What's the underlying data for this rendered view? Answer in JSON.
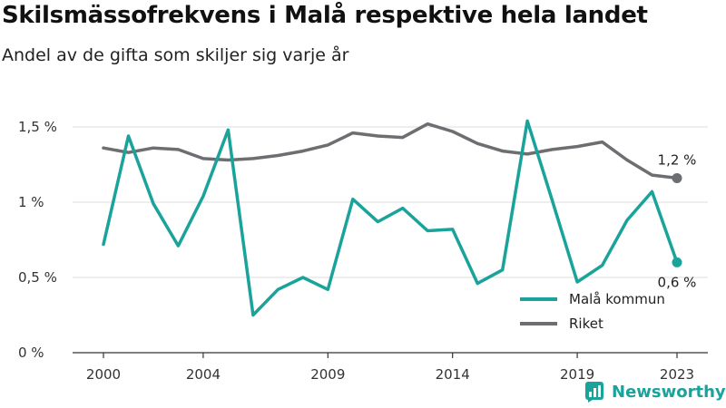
{
  "title": "Skilsmässofrekvens i Malå respektive hela landet",
  "subtitle": "Andel av de gifta som skiljer sig varje år",
  "brand": {
    "name": "Newsworthy",
    "color": "#1aa39a"
  },
  "chart_data": {
    "type": "line",
    "x": [
      2000,
      2001,
      2002,
      2003,
      2004,
      2005,
      2006,
      2007,
      2008,
      2009,
      2010,
      2011,
      2012,
      2013,
      2014,
      2015,
      2016,
      2017,
      2018,
      2019,
      2020,
      2021,
      2022,
      2023
    ],
    "x_ticks": [
      2000,
      2004,
      2009,
      2014,
      2019,
      2023
    ],
    "y_ticks": [
      0,
      0.5,
      1,
      1.5
    ],
    "y_tick_labels": [
      "0 %",
      "0,5 %",
      "1 %",
      "1,5 %"
    ],
    "ylim": [
      0,
      1.6
    ],
    "grid": true,
    "legend_position": "bottom-right",
    "series": [
      {
        "name": "Malå kommun",
        "color": "#1aa39a",
        "end_label": "0,6 %",
        "values": [
          0.72,
          1.44,
          0.99,
          0.71,
          1.04,
          1.48,
          0.25,
          0.42,
          0.5,
          0.42,
          1.02,
          0.87,
          0.96,
          0.81,
          0.82,
          0.46,
          0.55,
          1.54,
          1.01,
          0.47,
          0.58,
          0.88,
          1.07,
          0.6
        ]
      },
      {
        "name": "Riket",
        "color": "#6d6e71",
        "end_label": "1,2 %",
        "values": [
          1.36,
          1.33,
          1.36,
          1.35,
          1.29,
          1.28,
          1.29,
          1.31,
          1.34,
          1.38,
          1.46,
          1.44,
          1.43,
          1.52,
          1.47,
          1.39,
          1.34,
          1.32,
          1.35,
          1.37,
          1.4,
          1.28,
          1.18,
          1.16
        ]
      }
    ]
  }
}
